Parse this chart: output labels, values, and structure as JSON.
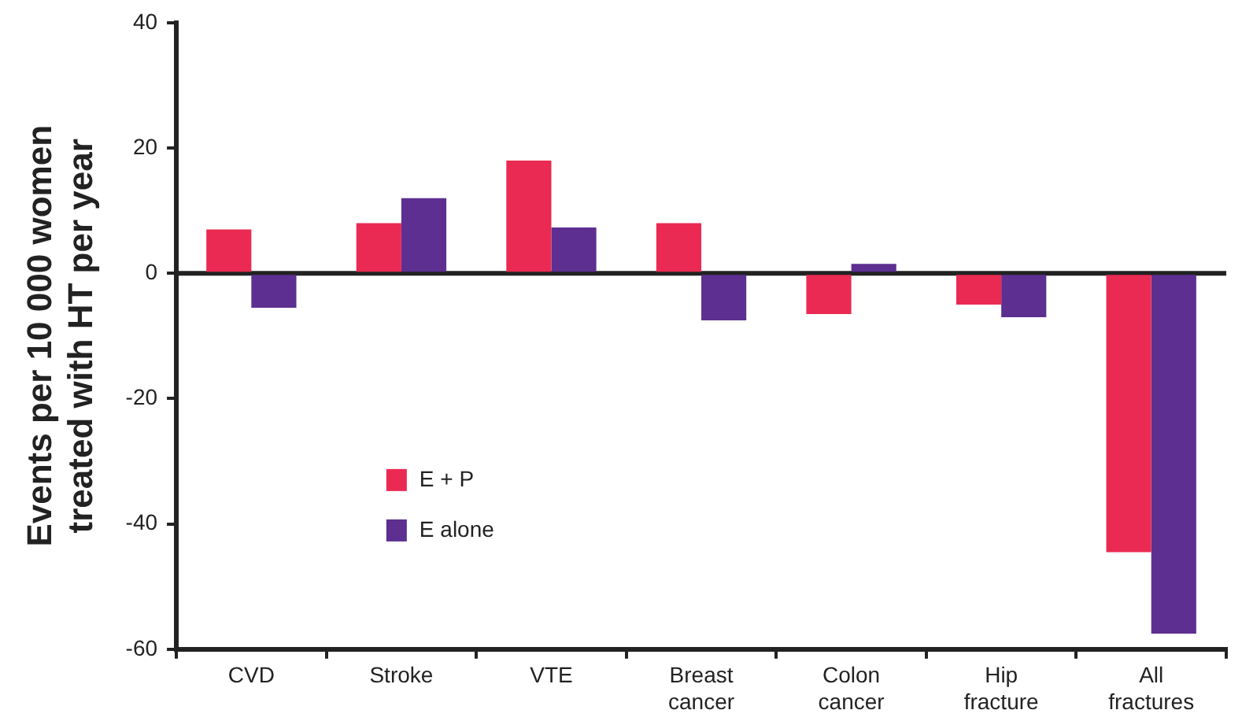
{
  "chart_data": {
    "type": "bar",
    "ylabel": "Events per 10 000 women\ntreated with HT per year",
    "categories": [
      "CVD",
      "Stroke",
      "VTE",
      "Breast cancer",
      "Colon cancer",
      "Hip fracture",
      "All fractures"
    ],
    "series": [
      {
        "name": "E + P",
        "color": "#ea2a52",
        "values": [
          7,
          8,
          18,
          8,
          -6.5,
          -5,
          -44.5
        ]
      },
      {
        "name": "E alone",
        "color": "#5d2f91",
        "values": [
          -5.5,
          12,
          7.3,
          -7.5,
          1.5,
          -7,
          -57.5
        ]
      }
    ],
    "ylim": [
      -60,
      40
    ],
    "yticks": [
      -60,
      -40,
      -20,
      0,
      20,
      40
    ],
    "grid": false,
    "ref_lines": [
      {
        "axis": "y",
        "value": 0,
        "color": "#222222"
      }
    ],
    "legend": "bottom left"
  }
}
